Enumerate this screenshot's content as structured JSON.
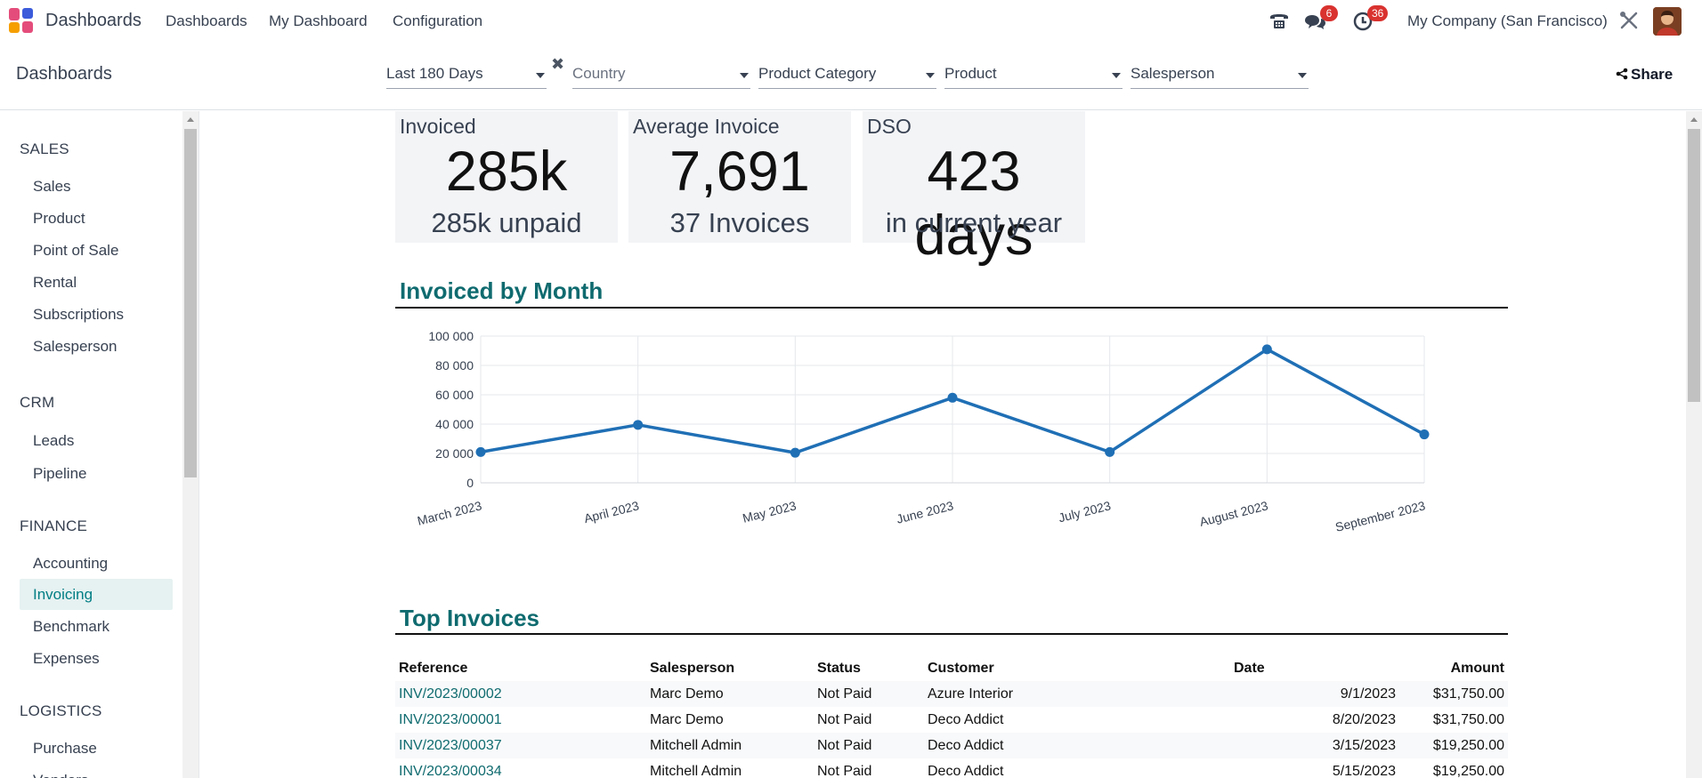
{
  "navbar": {
    "app_name": "Dashboards",
    "menus": [
      "Dashboards",
      "My Dashboard",
      "Configuration"
    ],
    "messages_badge": "6",
    "activities_badge": "36",
    "company": "My Company (San Francisco)"
  },
  "control_panel": {
    "breadcrumb": "Dashboards",
    "filters": {
      "period": "Last 180 Days",
      "country": "Country",
      "product_category": "Product Category",
      "product": "Product",
      "salesperson": "Salesperson"
    },
    "share_label": "Share"
  },
  "sidebar": {
    "sections": [
      {
        "title": "SALES",
        "items": [
          "Sales",
          "Product",
          "Point of Sale",
          "Rental",
          "Subscriptions",
          "Salesperson"
        ]
      },
      {
        "title": "CRM",
        "items": [
          "Leads",
          "Pipeline"
        ]
      },
      {
        "title": "FINANCE",
        "items": [
          "Accounting",
          "Invoicing",
          "Benchmark",
          "Expenses"
        ]
      },
      {
        "title": "LOGISTICS",
        "items": [
          "Purchase",
          "Vendors"
        ]
      }
    ],
    "active_item": "Invoicing"
  },
  "kpis": [
    {
      "title": "Invoiced",
      "value": "285k",
      "sub": "285k unpaid"
    },
    {
      "title": "Average Invoice",
      "value": "7,691",
      "sub": "37 Invoices"
    },
    {
      "title": "DSO",
      "value": "423 days",
      "sub": "in current year"
    }
  ],
  "chart_section_title": "Invoiced by Month",
  "chart_data": {
    "type": "line",
    "title": "Invoiced by Month",
    "categories": [
      "March 2023",
      "April 2023",
      "May 2023",
      "June 2023",
      "July 2023",
      "August 2023",
      "September 2023"
    ],
    "series": [
      {
        "name": "Invoiced",
        "values": [
          21000,
          39500,
          20500,
          58000,
          21000,
          91000,
          33000
        ]
      }
    ],
    "ylim": [
      0,
      100000
    ],
    "yticks": [
      0,
      20000,
      40000,
      60000,
      80000,
      100000
    ],
    "ytick_labels": [
      "0",
      "20 000",
      "40 000",
      "60 000",
      "80 000",
      "100 000"
    ],
    "grid": true,
    "color": "#1f6fb5"
  },
  "table_section_title": "Top Invoices",
  "top_invoices": {
    "headers": [
      "Reference",
      "Salesperson",
      "Status",
      "Customer",
      "Date",
      "Amount"
    ],
    "rows": [
      [
        "INV/2023/00002",
        "Marc Demo",
        "Not Paid",
        "Azure Interior",
        "9/1/2023",
        "$31,750.00"
      ],
      [
        "INV/2023/00001",
        "Marc Demo",
        "Not Paid",
        "Deco Addict",
        "8/20/2023",
        "$31,750.00"
      ],
      [
        "INV/2023/00037",
        "Mitchell Admin",
        "Not Paid",
        "Deco Addict",
        "3/15/2023",
        "$19,250.00"
      ],
      [
        "INV/2023/00034",
        "Mitchell Admin",
        "Not Paid",
        "Deco Addict",
        "5/15/2023",
        "$19,250.00"
      ]
    ]
  }
}
